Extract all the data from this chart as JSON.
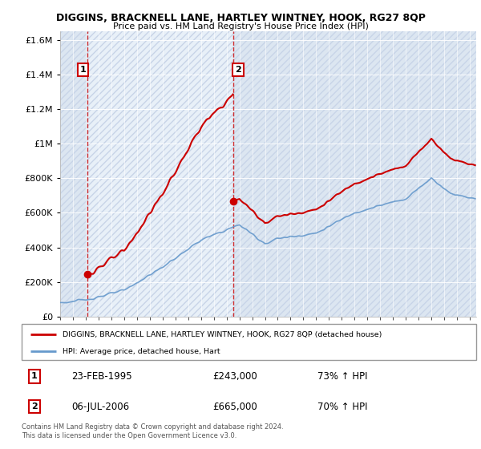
{
  "title": "DIGGINS, BRACKNELL LANE, HARTLEY WINTNEY, HOOK, RG27 8QP",
  "subtitle": "Price paid vs. HM Land Registry's House Price Index (HPI)",
  "legend_line1": "DIGGINS, BRACKNELL LANE, HARTLEY WINTNEY, HOOK, RG27 8QP (detached house)",
  "legend_line2": "HPI: Average price, detached house, Hart",
  "sale1_date": "23-FEB-1995",
  "sale1_price": "£243,000",
  "sale1_hpi": "73% ↑ HPI",
  "sale1_year": 1995.14,
  "sale1_value": 243000,
  "sale2_date": "06-JUL-2006",
  "sale2_price": "£665,000",
  "sale2_hpi": "70% ↑ HPI",
  "sale2_year": 2006.51,
  "sale2_value": 665000,
  "footer": "Contains HM Land Registry data © Crown copyright and database right 2024.\nThis data is licensed under the Open Government Licence v3.0.",
  "hpi_color": "#6699cc",
  "price_color": "#cc0000",
  "ylim": [
    0,
    1650000
  ],
  "xlim_start": 1993.0,
  "xlim_end": 2025.5,
  "hatch_color": "#c8d4e8",
  "plot_bg": "#dce6f1",
  "highlight_bg": "#e8f0f8"
}
